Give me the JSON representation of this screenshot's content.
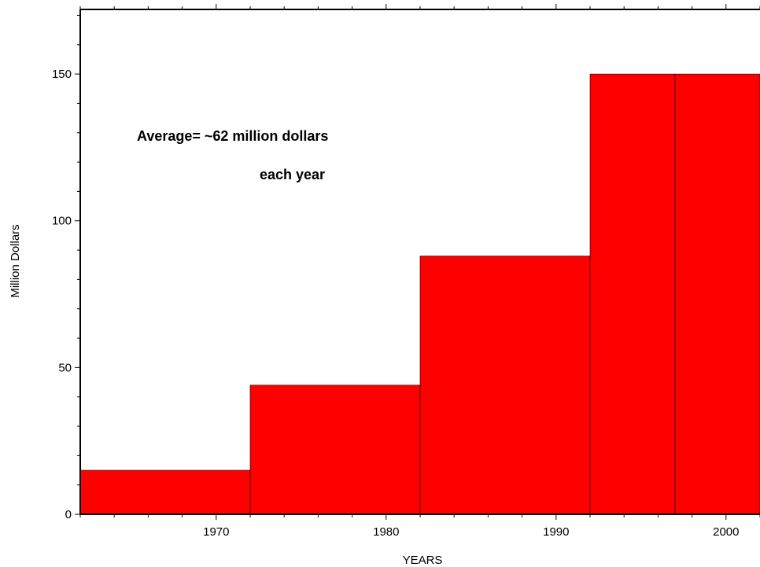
{
  "chart_data": {
    "type": "bar",
    "title": "",
    "xlabel": "YEARS",
    "ylabel": "Million Dollars",
    "xlim": [
      1962,
      2002
    ],
    "ylim": [
      0,
      172
    ],
    "x_ticks": [
      1970,
      1980,
      1990,
      2000
    ],
    "x_minor_tick_step": 2,
    "y_ticks": [
      0,
      50,
      100,
      150
    ],
    "y_minor_tick_step": 10,
    "bar_color": "#ff0000",
    "bins": [
      {
        "start": 1962,
        "end": 1972,
        "value": 15
      },
      {
        "start": 1972,
        "end": 1982,
        "value": 44
      },
      {
        "start": 1982,
        "end": 1992,
        "value": 88
      },
      {
        "start": 1992,
        "end": 1997,
        "value": 150
      },
      {
        "start": 1997,
        "end": 2002,
        "value": 150
      }
    ],
    "annotations": [
      "Average= ~62 million dollars",
      "each year"
    ]
  }
}
